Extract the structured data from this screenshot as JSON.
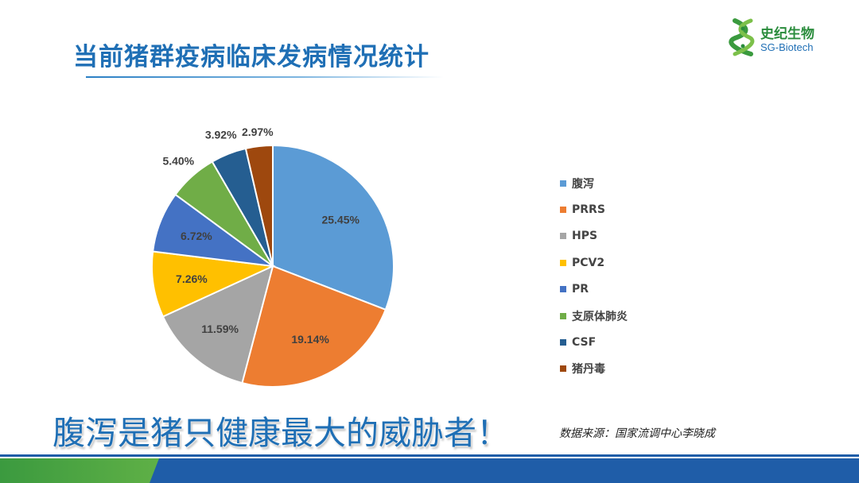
{
  "slide": {
    "title": "当前猪群疫病临床发病情况统计",
    "slogan": "腹泻是猪只健康最大的威胁者！",
    "source": "数据来源：国家流调中心李晓成"
  },
  "logo": {
    "name": "史纪生物",
    "sub": "SG-Biotech",
    "icon": "dna-helix-icon"
  },
  "colors": {
    "title": "#1f6fb5",
    "footer_blue": "#1f5da8",
    "footer_green": "#4aa541"
  },
  "chart_data": {
    "type": "pie",
    "legend_position": "right",
    "categories": [
      "腹泻",
      "PRRS",
      "HPS",
      "PCV2",
      "PR",
      "支原体肺炎",
      "CSF",
      "猪丹毒"
    ],
    "values": [
      25.45,
      19.14,
      11.59,
      7.26,
      6.72,
      5.4,
      3.92,
      2.97
    ],
    "labels": [
      "25.45%",
      "19.14%",
      "11.59%",
      "7.26%",
      "6.72%",
      "5.40%",
      "3.92%",
      "2.97%"
    ],
    "colors": [
      "#5b9bd5",
      "#ed7d31",
      "#a5a5a5",
      "#ffc000",
      "#4472c4",
      "#70ad47",
      "#255e91",
      "#9e480e"
    ]
  }
}
